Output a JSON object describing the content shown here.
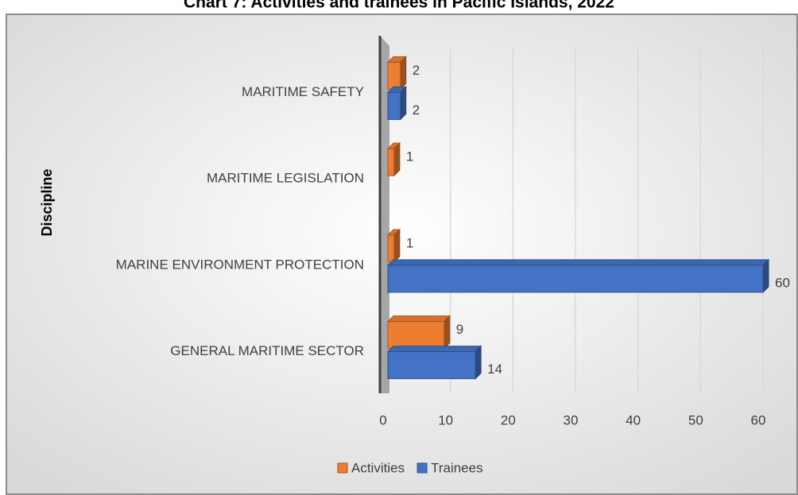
{
  "chart_data": {
    "type": "bar",
    "orientation": "horizontal",
    "title": "Chart 7: Activities and trainees in Pacific Islands, 2022",
    "y_axis_label": "Discipline",
    "categories": [
      "GENERAL MARITIME SECTOR",
      "MARINE ENVIRONMENT PROTECTION",
      "MARITIME LEGISLATION",
      "MARITIME SAFETY"
    ],
    "series": [
      {
        "name": "Activities",
        "color": "#ed7d31",
        "values": [
          9,
          1,
          1,
          2
        ]
      },
      {
        "name": "Trainees",
        "color": "#4472c4",
        "values": [
          14,
          60,
          null,
          2
        ]
      }
    ],
    "xlim": [
      0,
      60
    ],
    "xticks": [
      0,
      10,
      20,
      30,
      40,
      50,
      60
    ],
    "grid": true,
    "legend": "bottom"
  }
}
